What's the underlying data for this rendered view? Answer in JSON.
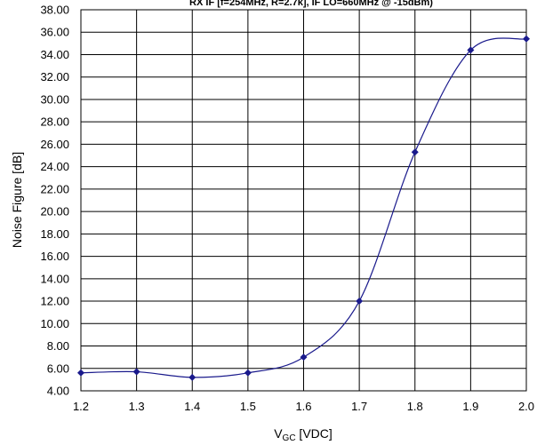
{
  "chart_data": {
    "type": "line",
    "title": "RX IF [f=254MHz, R=2.7k], IF LO=660MHz @ -15dBm)",
    "xlabel": {
      "base": "V",
      "sub": "GC",
      "rest": " [VDC]"
    },
    "ylabel": "Noise Figure [dB]",
    "xlim": [
      1.2,
      2.0
    ],
    "ylim": [
      4.0,
      38.0
    ],
    "x_ticks": [
      "1.2",
      "1.3",
      "1.4",
      "1.5",
      "1.6",
      "1.7",
      "1.8",
      "1.9",
      "2.0"
    ],
    "y_ticks": [
      "4.00",
      "6.00",
      "8.00",
      "10.00",
      "12.00",
      "14.00",
      "16.00",
      "18.00",
      "20.00",
      "22.00",
      "24.00",
      "26.00",
      "28.00",
      "30.00",
      "32.00",
      "34.00",
      "36.00",
      "38.00"
    ],
    "grid": true,
    "series": [
      {
        "x": [
          1.2,
          1.3,
          1.4,
          1.5,
          1.6,
          1.7,
          1.8,
          1.9,
          2.0
        ],
        "y": [
          5.6,
          5.7,
          5.2,
          5.6,
          7.0,
          12.0,
          25.3,
          34.4,
          35.4
        ],
        "color": "#1a1a8c",
        "marker": "diamond"
      }
    ]
  }
}
